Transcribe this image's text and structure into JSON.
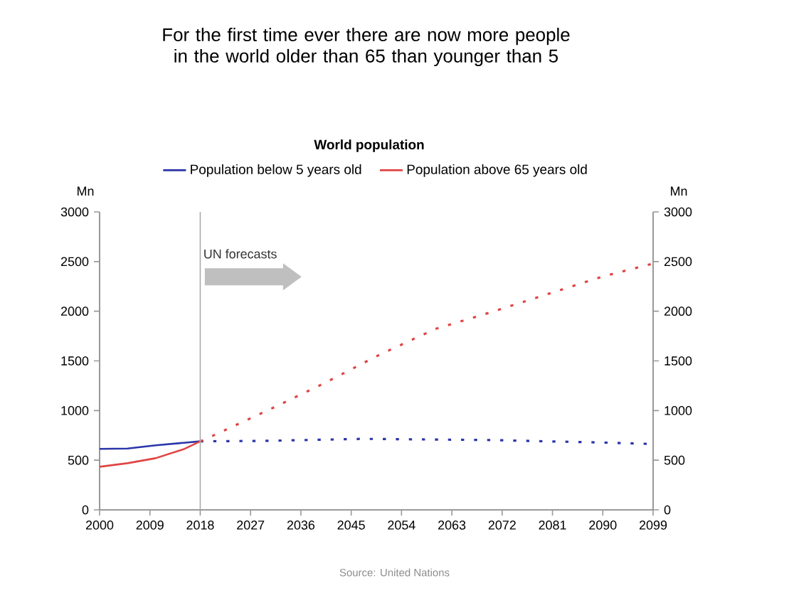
{
  "chart_data": {
    "type": "line",
    "title": "For the first time ever there are now more people in the world older than 65 than younger than 5",
    "subtitle": "World population",
    "ylabel": "Mn",
    "y2label": "Mn",
    "xlim": [
      2000,
      2099
    ],
    "xticks": [
      2000,
      2009,
      2018,
      2027,
      2036,
      2045,
      2054,
      2063,
      2072,
      2081,
      2090,
      2099
    ],
    "ylim": [
      0,
      3000
    ],
    "yticks": [
      0,
      500,
      1000,
      1500,
      2000,
      2500,
      3000
    ],
    "y2lim": [
      0,
      3000
    ],
    "y2ticks": [
      0,
      500,
      1000,
      1500,
      2000,
      2500,
      3000
    ],
    "legend": "top",
    "grid": false,
    "ref_lines": [
      {
        "axis": "x",
        "value": 2018,
        "color": "#aaaaaa"
      }
    ],
    "annotations": [
      {
        "text": "UN forecasts",
        "x": 2018,
        "y": 2500
      },
      "Source: United Nations"
    ],
    "series": [
      {
        "name": "Population below 5 years old",
        "color": "#2a35a8",
        "line_style": "solid",
        "x": [
          2000,
          2005,
          2010,
          2015,
          2018
        ],
        "values": [
          614,
          618,
          650,
          675,
          690
        ]
      },
      {
        "name": "Population above 65 years old",
        "color": "#e04545",
        "line_style": "solid",
        "x": [
          2000,
          2005,
          2010,
          2015,
          2018
        ],
        "values": [
          434,
          470,
          520,
          610,
          690
        ]
      },
      {
        "color": "#2a35a8",
        "line_style": "dotted",
        "x": [
          2018,
          2030,
          2047,
          2060,
          2070,
          2080,
          2090,
          2099
        ],
        "values": [
          690,
          695,
          715,
          708,
          703,
          690,
          678,
          663
        ]
      },
      {
        "color": "#e04545",
        "line_style": "dotted",
        "x": [
          2018,
          2020,
          2030,
          2040,
          2050,
          2060,
          2070,
          2080,
          2090,
          2099
        ],
        "values": [
          690,
          740,
          1000,
          1270,
          1560,
          1820,
          1990,
          2170,
          2350,
          2480
        ]
      }
    ]
  }
}
